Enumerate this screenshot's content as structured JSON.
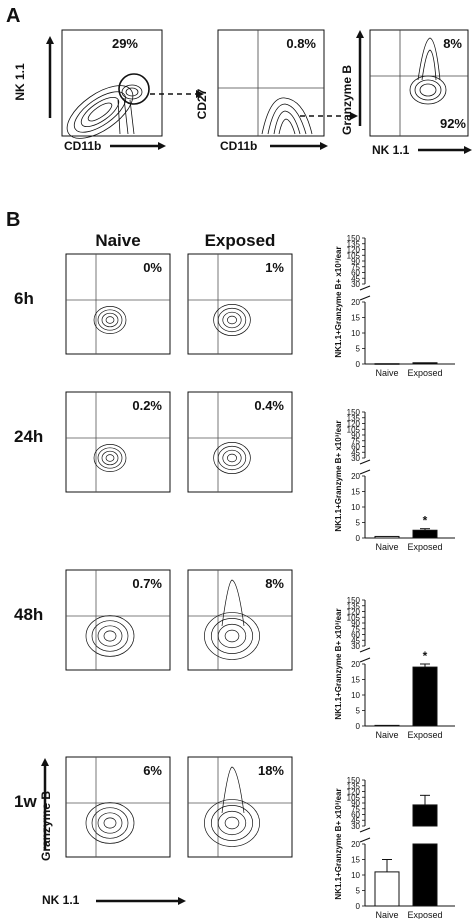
{
  "panel_a": {
    "label": "A",
    "plot1": {
      "ylabel": "NK 1.1",
      "xlabel": "CD11b",
      "percent": "29%"
    },
    "plot2": {
      "ylabel": "CD27",
      "xlabel": "CD11b",
      "percent": "0.8%"
    },
    "plot3": {
      "ylabel": "Granzyme B",
      "xlabel": "NK 1.1",
      "percent_top": "8%",
      "percent_bottom": "92%"
    }
  },
  "panel_b": {
    "label": "B",
    "col_naive": "Naive",
    "col_exposed": "Exposed",
    "axis_ylabel": "Granzyme B",
    "axis_xlabel": "NK 1.1",
    "rows": [
      {
        "time": "6h",
        "naive_pct": "0%",
        "exposed_pct": "1%"
      },
      {
        "time": "24h",
        "naive_pct": "0.2%",
        "exposed_pct": "0.4%"
      },
      {
        "time": "48h",
        "naive_pct": "0.7%",
        "exposed_pct": "8%"
      },
      {
        "time": "1w",
        "naive_pct": "6%",
        "exposed_pct": "18%"
      }
    ]
  },
  "chart_data": [
    {
      "type": "bar",
      "ylabel": "NK1.1+Granzyme B+ x10³/ear",
      "categories": [
        "Naive",
        "Exposed"
      ],
      "values": [
        0.1,
        0.4
      ],
      "errors": [
        0,
        0
      ],
      "significance": [
        "",
        ""
      ],
      "fill": [
        "#ffffff",
        "#000000"
      ],
      "yticks_lower": [
        0,
        5,
        10,
        15,
        20
      ],
      "yticks_upper": [
        30,
        45,
        60,
        75,
        90,
        105,
        120,
        135,
        150
      ]
    },
    {
      "type": "bar",
      "ylabel": "NK1.1+Granzyme B+ x10³/ear",
      "categories": [
        "Naive",
        "Exposed"
      ],
      "values": [
        0.5,
        2.5
      ],
      "errors": [
        0,
        0.5
      ],
      "significance": [
        "",
        "*"
      ],
      "fill": [
        "#ffffff",
        "#000000"
      ],
      "yticks_lower": [
        0,
        5,
        10,
        15,
        20
      ],
      "yticks_upper": [
        30,
        45,
        60,
        75,
        90,
        105,
        120,
        135,
        150
      ]
    },
    {
      "type": "bar",
      "ylabel": "NK1.1+Granzyme B+ x10³/ear",
      "categories": [
        "Naive",
        "Exposed"
      ],
      "values": [
        0.2,
        19
      ],
      "errors": [
        0,
        1
      ],
      "significance": [
        "",
        "*"
      ],
      "fill": [
        "#ffffff",
        "#000000"
      ],
      "yticks_lower": [
        0,
        5,
        10,
        15,
        20
      ],
      "yticks_upper": [
        30,
        45,
        60,
        75,
        90,
        105,
        120,
        135,
        150
      ]
    },
    {
      "type": "bar",
      "ylabel": "NK1.1+Granzyme B+ x10³/ear",
      "categories": [
        "Naive",
        "Exposed"
      ],
      "values": [
        11,
        85
      ],
      "errors": [
        4,
        25
      ],
      "significance": [
        "",
        ""
      ],
      "fill": [
        "#ffffff",
        "#000000"
      ],
      "yticks_lower": [
        0,
        5,
        10,
        15,
        20
      ],
      "yticks_upper": [
        30,
        45,
        60,
        75,
        90,
        105,
        120,
        135,
        150
      ]
    }
  ]
}
